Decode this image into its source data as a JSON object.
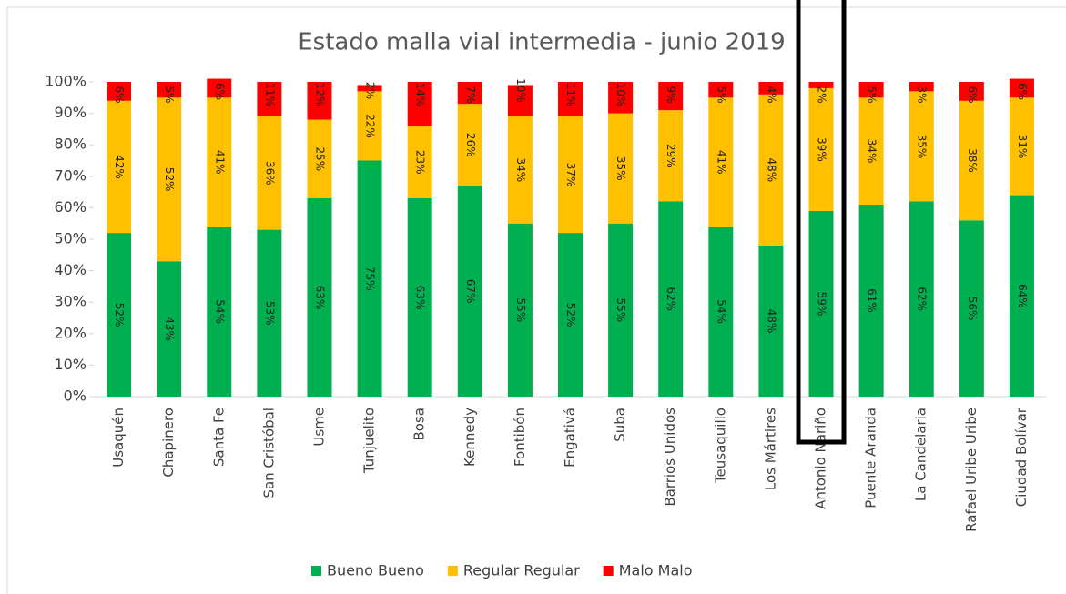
{
  "chart_data": {
    "type": "stacked_bar",
    "title": "Estado malla vial intermedia - junio 2019",
    "categories": [
      "Usaquén",
      "Chapinero",
      "Santa Fe",
      "San Cristóbal",
      "Usme",
      "Tunjuelito",
      "Bosa",
      "Kennedy",
      "Fontibón",
      "Engativá",
      "Suba",
      "Barrios Unidos",
      "Teusaquillo",
      "Los Mártires",
      "Antonio Nariño",
      "Puente Aranda",
      "La Candelaria",
      "Rafael Uribe Uribe",
      "Ciudad Bolívar"
    ],
    "series": [
      {
        "name": "Bueno Bueno",
        "color": "#00b050",
        "values": [
          52,
          43,
          54,
          53,
          63,
          75,
          63,
          67,
          55,
          52,
          55,
          62,
          54,
          48,
          59,
          61,
          62,
          56,
          64
        ],
        "value_labels": [
          "52%",
          "43%",
          "54%",
          "53%",
          "63%",
          "75%",
          "63%",
          "67%",
          "55%",
          "52%",
          "55%",
          "62%",
          "54%",
          "48%",
          "59%",
          "61%",
          "62%",
          "56%",
          "64%"
        ]
      },
      {
        "name": "Regular Regular",
        "color": "#ffc000",
        "values": [
          42,
          52,
          41,
          36,
          25,
          22,
          23,
          26,
          34,
          37,
          35,
          29,
          41,
          48,
          39,
          34,
          35,
          38,
          31
        ],
        "value_labels": [
          "42%",
          "52%",
          "41%",
          "36%",
          "25%",
          "22%",
          "23%",
          "26%",
          "34%",
          "37%",
          "35%",
          "29%",
          "41%",
          "48%",
          "39%",
          "34%",
          "35%",
          "38%",
          "31%"
        ]
      },
      {
        "name": "Malo Malo",
        "color": "#ff0000",
        "values": [
          6,
          5,
          6,
          11,
          12,
          2,
          14,
          7,
          10,
          11,
          10,
          9,
          5,
          4,
          2,
          5,
          3,
          6,
          6
        ],
        "value_labels": [
          "6%",
          "5%",
          "6%",
          "11%",
          "12%",
          "2%",
          "14%",
          "7%",
          "10%",
          "11%",
          "10%",
          "9%",
          "5%",
          "4%",
          "2%",
          "5%",
          "3%",
          "6%",
          "6%"
        ]
      }
    ],
    "ylim": [
      0,
      100
    ],
    "yticks": [
      {
        "value": 0,
        "label": "0%"
      },
      {
        "value": 10,
        "label": "10%"
      },
      {
        "value": 20,
        "label": "20%"
      },
      {
        "value": 30,
        "label": "30%"
      },
      {
        "value": 40,
        "label": "40%"
      },
      {
        "value": 50,
        "label": "50%"
      },
      {
        "value": 60,
        "label": "60%"
      },
      {
        "value": 70,
        "label": "70%"
      },
      {
        "value": 80,
        "label": "80%"
      },
      {
        "value": 90,
        "label": "90%"
      },
      {
        "value": 100,
        "label": "100%"
      }
    ],
    "legend": "bottom"
  }
}
